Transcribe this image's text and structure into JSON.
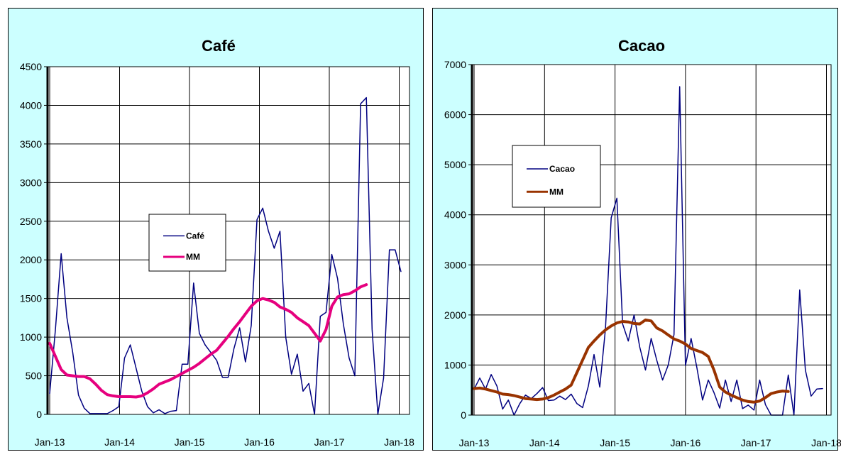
{
  "chart_data": [
    {
      "type": "line",
      "title": "Café",
      "xlabel": "",
      "ylabel": "",
      "x_ticks": [
        "Jan-13",
        "Jan-14",
        "Jan-15",
        "Jan-16",
        "Jan-17",
        "Jan-18"
      ],
      "y_ticks": [
        "0",
        "500",
        "1000",
        "1500",
        "2000",
        "2500",
        "3000",
        "3500",
        "4000",
        "4500"
      ],
      "ylim": [
        0,
        4500
      ],
      "xlim": [
        0,
        62
      ],
      "grid": true,
      "legend": "center",
      "series": [
        {
          "name": "Café",
          "color": "#000080",
          "width": 1.5,
          "x": [
            0,
            1,
            2,
            3,
            4,
            5,
            6,
            7,
            8,
            9,
            10,
            11,
            12,
            13,
            14,
            15,
            16,
            17,
            18,
            19,
            20,
            21,
            22,
            23,
            24,
            25,
            26,
            27,
            28,
            29,
            30,
            31,
            32,
            33,
            34,
            35,
            36,
            37,
            38,
            39,
            40,
            41,
            42,
            43,
            44,
            45,
            46,
            47,
            48,
            49,
            50,
            51,
            52,
            53,
            54,
            55,
            56,
            57,
            58,
            59,
            60,
            61
          ],
          "values": [
            270,
            1100,
            2080,
            1250,
            800,
            250,
            80,
            10,
            10,
            10,
            10,
            50,
            100,
            730,
            900,
            600,
            300,
            100,
            20,
            60,
            10,
            40,
            50,
            650,
            650,
            1700,
            1050,
            900,
            800,
            700,
            480,
            480,
            850,
            1120,
            680,
            1150,
            2520,
            2670,
            2370,
            2150,
            2370,
            1000,
            520,
            780,
            300,
            400,
            0,
            1270,
            1320,
            2070,
            1760,
            1170,
            730,
            500,
            4020,
            4100,
            1100,
            0,
            470,
            2130,
            2130,
            1850
          ]
        },
        {
          "name": "MM",
          "color": "#e6007e",
          "width": 4,
          "x": [
            0,
            1,
            2,
            3,
            4,
            5,
            6,
            7,
            8,
            9,
            10,
            11,
            12,
            13,
            14,
            15,
            16,
            17,
            18,
            19,
            20,
            21,
            22,
            23,
            24,
            25,
            26,
            27,
            28,
            29,
            30,
            31,
            32,
            33,
            34,
            35,
            36,
            37,
            38,
            39,
            40,
            41,
            42,
            43,
            44,
            45,
            46,
            47,
            48,
            49,
            50,
            51,
            52,
            53,
            54,
            55
          ],
          "values": [
            920,
            750,
            580,
            510,
            500,
            490,
            490,
            460,
            390,
            310,
            255,
            240,
            230,
            230,
            230,
            225,
            240,
            280,
            330,
            390,
            420,
            450,
            490,
            530,
            570,
            610,
            660,
            720,
            780,
            830,
            920,
            1010,
            1110,
            1200,
            1300,
            1400,
            1470,
            1500,
            1480,
            1450,
            1390,
            1360,
            1320,
            1250,
            1200,
            1150,
            1050,
            950,
            1100,
            1400,
            1520,
            1550,
            1560,
            1600,
            1650,
            1680
          ]
        }
      ]
    },
    {
      "type": "line",
      "title": "Cacao",
      "xlabel": "",
      "ylabel": "",
      "x_ticks": [
        "Jan-13",
        "Jan-14",
        "Jan-15",
        "Jan-16",
        "Jan-17",
        "Jan-18"
      ],
      "y_ticks": [
        "0",
        "1000",
        "2000",
        "3000",
        "4000",
        "5000",
        "6000",
        "7000"
      ],
      "ylim": [
        0,
        7000
      ],
      "xlim": [
        0,
        62
      ],
      "grid": true,
      "legend": "upper-left",
      "series": [
        {
          "name": "Cacao",
          "color": "#000080",
          "width": 1.5,
          "x": [
            0,
            1,
            2,
            3,
            4,
            5,
            6,
            7,
            8,
            9,
            10,
            11,
            12,
            13,
            14,
            15,
            16,
            17,
            18,
            19,
            20,
            21,
            22,
            23,
            24,
            25,
            26,
            27,
            28,
            29,
            30,
            31,
            32,
            33,
            34,
            35,
            36,
            37,
            38,
            39,
            40,
            41,
            42,
            43,
            44,
            45,
            46,
            47,
            48,
            49,
            50,
            51,
            52,
            53,
            54,
            55,
            56,
            57,
            58,
            59,
            60,
            61
          ],
          "values": [
            520,
            740,
            520,
            810,
            580,
            120,
            300,
            0,
            230,
            400,
            330,
            430,
            550,
            290,
            300,
            380,
            310,
            420,
            230,
            150,
            580,
            1210,
            560,
            1720,
            3940,
            4330,
            1820,
            1480,
            2000,
            1360,
            900,
            1530,
            1090,
            700,
            1000,
            1610,
            6560,
            990,
            1530,
            950,
            300,
            700,
            450,
            140,
            700,
            270,
            700,
            130,
            200,
            100,
            700,
            210,
            0,
            0,
            0,
            800,
            0,
            2500,
            900,
            380,
            520,
            530
          ]
        },
        {
          "name": "MM",
          "color": "#993300",
          "width": 4,
          "x": [
            0,
            1,
            2,
            3,
            4,
            5,
            6,
            7,
            8,
            9,
            10,
            11,
            12,
            13,
            14,
            15,
            16,
            17,
            18,
            19,
            20,
            21,
            22,
            23,
            24,
            25,
            26,
            27,
            28,
            29,
            30,
            31,
            32,
            33,
            34,
            35,
            36,
            37,
            38,
            39,
            40,
            41,
            42,
            43,
            44,
            45,
            46,
            47,
            48,
            49,
            50,
            51,
            52,
            53,
            54,
            55
          ],
          "values": [
            530,
            540,
            520,
            490,
            460,
            420,
            410,
            390,
            360,
            330,
            320,
            310,
            320,
            350,
            400,
            460,
            520,
            600,
            850,
            1100,
            1350,
            1480,
            1600,
            1700,
            1780,
            1840,
            1870,
            1860,
            1830,
            1820,
            1900,
            1880,
            1740,
            1680,
            1600,
            1520,
            1480,
            1420,
            1330,
            1290,
            1250,
            1170,
            900,
            560,
            460,
            400,
            350,
            300,
            270,
            260,
            280,
            350,
            430,
            460,
            480,
            470
          ]
        }
      ]
    }
  ]
}
